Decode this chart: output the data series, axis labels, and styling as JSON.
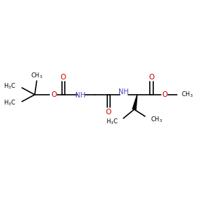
{
  "bg_color": "#ffffff",
  "bond_color": "#000000",
  "oxygen_color": "#cc0000",
  "nitrogen_color": "#4444bb",
  "line_width": 1.2,
  "figsize": [
    3.0,
    3.0
  ],
  "dpi": 100,
  "xlim": [
    0,
    10
  ],
  "ylim": [
    0,
    10
  ]
}
